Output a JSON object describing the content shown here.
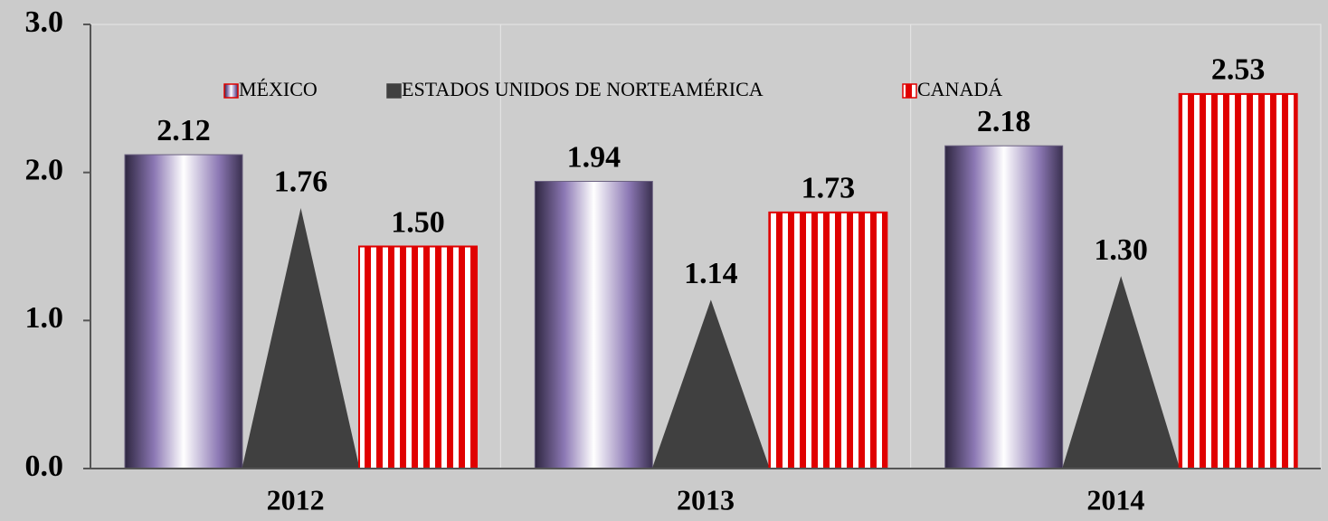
{
  "chart_data": {
    "type": "bar",
    "categories": [
      "2012",
      "2013",
      "2014"
    ],
    "series": [
      {
        "name": "MÉXICO",
        "color": "#8c78b4",
        "fill": "gradient",
        "shape": "bar",
        "values": [
          2.12,
          1.94,
          2.18
        ],
        "value_labels": [
          "2.12",
          "1.94",
          "2.18"
        ]
      },
      {
        "name": "ESTADOS UNIDOS DE NORTEAMÉRICA",
        "color": "#404040",
        "fill": "solid",
        "shape": "triangle",
        "values": [
          1.76,
          1.14,
          1.3
        ],
        "value_labels": [
          "1.76",
          "1.14",
          "1.30"
        ]
      },
      {
        "name": "CANADÁ",
        "color": "#e00000",
        "fill": "stripes",
        "shape": "bar",
        "values": [
          1.5,
          1.73,
          2.53
        ],
        "value_labels": [
          "1.50",
          "1.73",
          "2.53"
        ]
      }
    ],
    "ylim": [
      0,
      3
    ],
    "yticks": [
      {
        "value": 0,
        "label": "0.0"
      },
      {
        "value": 1,
        "label": "1.0"
      },
      {
        "value": 2,
        "label": "2.0"
      },
      {
        "value": 3,
        "label": "3.0"
      }
    ],
    "legend": "top"
  }
}
